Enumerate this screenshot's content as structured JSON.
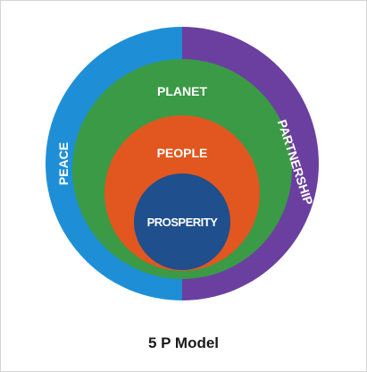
{
  "labels": {
    "peace": "PEACE",
    "planet": "PLANET",
    "people": "PEOPLE",
    "prosperity": "PROSPERITY",
    "partnership": "PARTNERSHIP"
  },
  "caption": "5 P Model",
  "colors": {
    "peace": "#1e8fd6",
    "partnership": "#6b3fa0",
    "planet": "#3b9a45",
    "people": "#e2571f",
    "prosperity": "#1f4f8c"
  }
}
